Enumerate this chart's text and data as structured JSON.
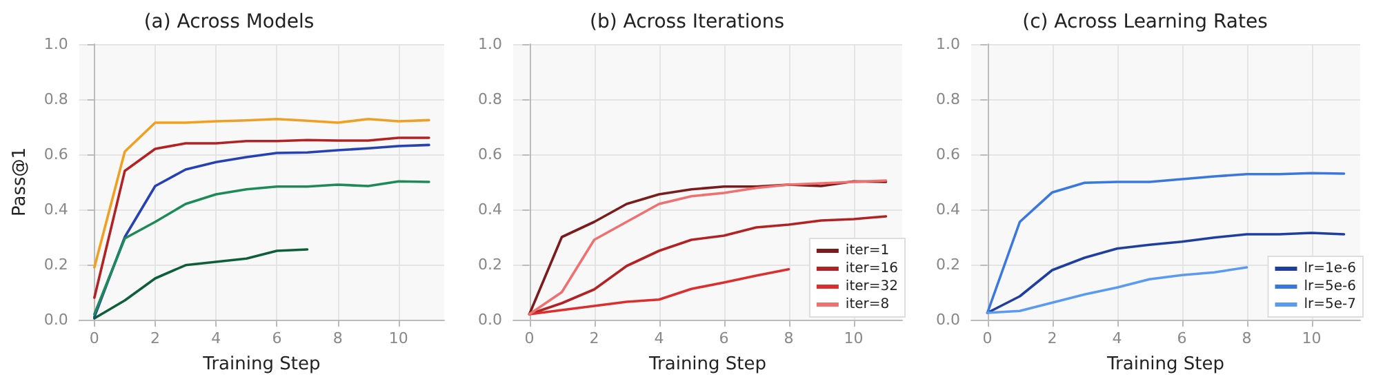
{
  "chart_data": [
    {
      "type": "line",
      "title": "(a) Across Models",
      "xlabel": "Training Step",
      "ylabel": "Pass@1",
      "x": [
        0,
        1,
        2,
        3,
        4,
        5,
        6,
        7,
        8,
        9,
        10,
        11
      ],
      "xlim": [
        -0.5,
        11.5
      ],
      "xticks": [
        0,
        2,
        4,
        6,
        8,
        10
      ],
      "ylim": [
        0,
        1
      ],
      "yticks": [
        {
          "value": 0,
          "label": "0.0"
        },
        {
          "value": 0.2,
          "label": "0.2"
        },
        {
          "value": 0.4,
          "label": "0.4"
        },
        {
          "value": 0.6,
          "label": "0.6"
        },
        {
          "value": 0.8,
          "label": "0.8"
        },
        {
          "value": 1,
          "label": "1.0"
        }
      ],
      "grid": true,
      "marker": "none",
      "line_style": "solid",
      "series": [
        {
          "color": "#b22222",
          "values": [
            0.08,
            0.54,
            0.62,
            0.64,
            0.64,
            0.648,
            0.648,
            0.652,
            0.65,
            0.65,
            0.66,
            0.66
          ]
        },
        {
          "color": "#2541b2",
          "values": [
            0.01,
            0.3,
            0.485,
            0.545,
            0.572,
            0.59,
            0.605,
            0.607,
            0.615,
            0.622,
            0.63,
            0.634
          ]
        },
        {
          "color": "#0f5e3a",
          "values": [
            0.005,
            0.07,
            0.15,
            0.198,
            0.21,
            0.222,
            0.25,
            0.255,
            null,
            null,
            null,
            null
          ]
        },
        {
          "color": "#1e8a57",
          "values": [
            0.02,
            0.295,
            0.355,
            0.42,
            0.455,
            0.473,
            0.483,
            0.483,
            0.49,
            0.485,
            0.502,
            0.5
          ]
        },
        {
          "color": "#f0a020",
          "values": [
            0.19,
            0.61,
            0.715,
            0.715,
            0.72,
            0.723,
            0.728,
            0.722,
            0.715,
            0.728,
            0.72,
            0.724
          ]
        }
      ]
    },
    {
      "type": "line",
      "title": "(b) Across Iterations",
      "xlabel": "Training Step",
      "x": [
        0,
        1,
        2,
        3,
        4,
        5,
        6,
        7,
        8,
        9,
        10,
        11
      ],
      "xlim": [
        -0.5,
        11.5
      ],
      "xticks": [
        0,
        2,
        4,
        6,
        8,
        10
      ],
      "ylim": [
        0,
        1
      ],
      "yticks": [
        {
          "value": 0,
          "label": "0.0"
        },
        {
          "value": 0.2,
          "label": "0.2"
        },
        {
          "value": 0.4,
          "label": "0.4"
        },
        {
          "value": 0.6,
          "label": "0.6"
        },
        {
          "value": 0.8,
          "label": "0.8"
        },
        {
          "value": 1,
          "label": "1.0"
        }
      ],
      "grid": true,
      "marker": "none",
      "line_style": "solid",
      "legend": "bottom right",
      "series": [
        {
          "name": "iter=1",
          "color": "#7a1c1c",
          "values": [
            0.02,
            0.3,
            0.355,
            0.42,
            0.455,
            0.473,
            0.483,
            0.483,
            0.49,
            0.485,
            0.502,
            0.5
          ]
        },
        {
          "name": "iter=16",
          "color": "#b22222",
          "values": [
            0.02,
            0.06,
            0.11,
            0.195,
            0.25,
            0.29,
            0.305,
            0.335,
            0.345,
            0.36,
            0.365,
            0.375
          ]
        },
        {
          "name": "iter=32",
          "color": "#dd2e2e",
          "values": [
            0.02,
            0.035,
            0.05,
            0.065,
            0.073,
            0.112,
            0.135,
            0.16,
            0.183,
            null,
            null,
            null
          ]
        },
        {
          "name": "iter=8",
          "color": "#f07070",
          "values": [
            0.02,
            0.1,
            0.29,
            0.355,
            0.42,
            0.448,
            0.46,
            0.478,
            0.49,
            0.495,
            0.5,
            0.505
          ]
        }
      ]
    },
    {
      "type": "line",
      "title": "(c) Across Learning Rates",
      "xlabel": "Training Step",
      "x": [
        0,
        1,
        2,
        3,
        4,
        5,
        6,
        7,
        8,
        9,
        10,
        11
      ],
      "xlim": [
        -0.5,
        11.5
      ],
      "xticks": [
        0,
        2,
        4,
        6,
        8,
        10
      ],
      "ylim": [
        0,
        1
      ],
      "yticks": [
        {
          "value": 0,
          "label": "0.0"
        },
        {
          "value": 0.2,
          "label": "0.2"
        },
        {
          "value": 0.4,
          "label": "0.4"
        },
        {
          "value": 0.6,
          "label": "0.6"
        },
        {
          "value": 0.8,
          "label": "0.8"
        },
        {
          "value": 1,
          "label": "1.0"
        }
      ],
      "grid": true,
      "marker": "none",
      "line_style": "solid",
      "legend": "bottom right",
      "series": [
        {
          "name": "lr=1e-6",
          "color": "#1f3fa0",
          "values": [
            0.025,
            0.085,
            0.18,
            0.225,
            0.258,
            0.272,
            0.283,
            0.298,
            0.31,
            0.31,
            0.315,
            0.31
          ]
        },
        {
          "name": "lr=5e-6",
          "color": "#3a78e0",
          "values": [
            0.025,
            0.355,
            0.462,
            0.497,
            0.5,
            0.5,
            0.51,
            0.52,
            0.528,
            0.528,
            0.532,
            0.53
          ]
        },
        {
          "name": "lr=5e-7",
          "color": "#5a9af0",
          "values": [
            0.025,
            0.032,
            0.062,
            0.092,
            0.117,
            0.147,
            0.162,
            0.172,
            0.19,
            null,
            null,
            null
          ]
        }
      ]
    }
  ]
}
